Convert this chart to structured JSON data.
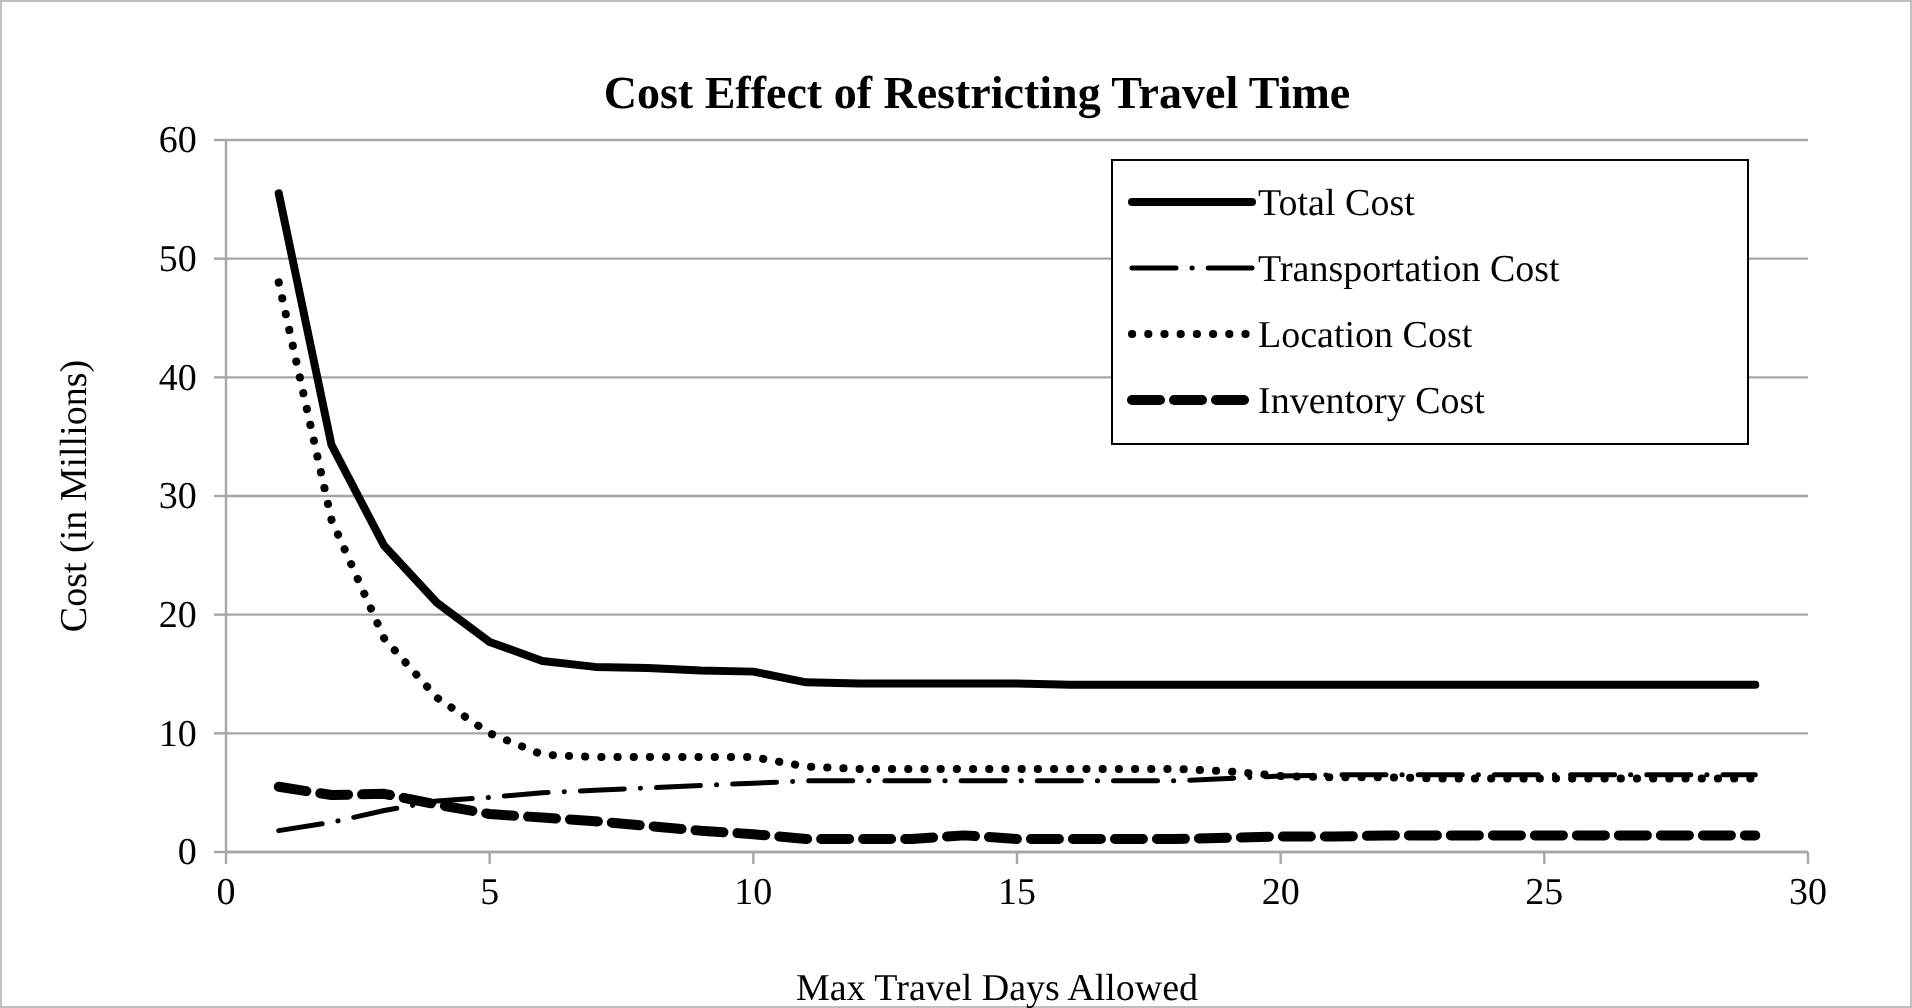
{
  "chart_data": {
    "type": "line",
    "title": "Cost Effect of Restricting Travel Time",
    "xlabel": "Max Travel Days Allowed",
    "ylabel": "Cost (in Millions)",
    "x": [
      1,
      2,
      3,
      4,
      5,
      6,
      7,
      8,
      9,
      10,
      11,
      12,
      13,
      14,
      15,
      16,
      17,
      18,
      19,
      20,
      21,
      22,
      23,
      24,
      25,
      26,
      27,
      28,
      29
    ],
    "xlim": [
      0,
      30
    ],
    "xticks": [
      0,
      5,
      10,
      15,
      20,
      25,
      30
    ],
    "ylim": [
      0,
      60
    ],
    "yticks": [
      0,
      10,
      20,
      30,
      40,
      50,
      60
    ],
    "grid": "y",
    "legend": "top right",
    "marker": "none",
    "series": [
      {
        "name": "Total Cost",
        "color": "#000000",
        "line_style": "solid",
        "values": [
          55.5,
          34.3,
          25.8,
          21,
          17.7,
          16.1,
          15.6,
          15.5,
          15.3,
          15.2,
          14.3,
          14.2,
          14.2,
          14.2,
          14.2,
          14.1,
          14.1,
          14.1,
          14.1,
          14.1,
          14.1,
          14.1,
          14.1,
          14.1,
          14.1,
          14.1,
          14.1,
          14.1,
          14.1
        ]
      },
      {
        "name": "Transportation Cost",
        "color": "#000000",
        "line_style": "dashdot",
        "values": [
          1.8,
          2.5,
          3.5,
          4.3,
          4.6,
          5,
          5.2,
          5.4,
          5.6,
          5.8,
          6,
          6,
          6,
          6,
          6,
          6,
          6,
          6,
          6.2,
          6.4,
          6.5,
          6.5,
          6.5,
          6.5,
          6.5,
          6.5,
          6.5,
          6.5,
          6.5
        ]
      },
      {
        "name": "Location Cost",
        "color": "#000000",
        "line_style": "dotted",
        "values": [
          48,
          28,
          18,
          13,
          10,
          8.2,
          8,
          8,
          8,
          8,
          7.2,
          7,
          7,
          7,
          7,
          7,
          7,
          7,
          6.8,
          6.4,
          6.3,
          6.3,
          6.2,
          6.2,
          6.2,
          6.2,
          6.2,
          6.2,
          6.2
        ]
      },
      {
        "name": "Inventory Cost",
        "color": "#000000",
        "line_style": "dashed",
        "values": [
          5.5,
          4.8,
          4.9,
          4,
          3.2,
          2.9,
          2.6,
          2.2,
          1.8,
          1.5,
          1.1,
          1.1,
          1.1,
          1.4,
          1.1,
          1.1,
          1.1,
          1.1,
          1.2,
          1.3,
          1.3,
          1.4,
          1.4,
          1.4,
          1.4,
          1.4,
          1.4,
          1.4,
          1.4
        ]
      }
    ]
  }
}
